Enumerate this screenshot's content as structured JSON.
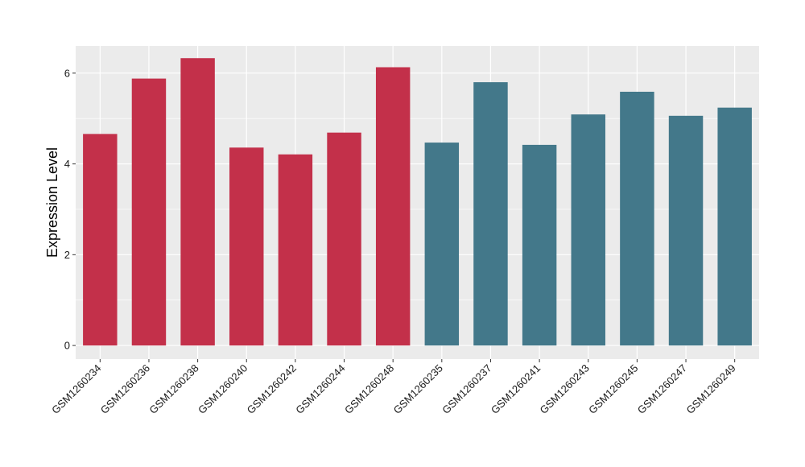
{
  "chart_data": {
    "type": "bar",
    "title": "",
    "xlabel": "",
    "ylabel": "Expression Level",
    "categories": [
      "GSM1260234",
      "GSM1260236",
      "GSM1260238",
      "GSM1260240",
      "GSM1260242",
      "GSM1260244",
      "GSM1260248",
      "GSM1260235",
      "GSM1260237",
      "GSM1260241",
      "GSM1260243",
      "GSM1260245",
      "GSM1260247",
      "GSM1260249"
    ],
    "values": [
      4.66,
      5.88,
      6.33,
      4.36,
      4.21,
      4.69,
      6.13,
      4.47,
      5.8,
      4.42,
      5.09,
      5.59,
      5.06,
      5.24
    ],
    "bar_colors": [
      "#C3304A",
      "#C3304A",
      "#C3304A",
      "#C3304A",
      "#C3304A",
      "#C3304A",
      "#C3304A",
      "#43788A",
      "#43788A",
      "#43788A",
      "#43788A",
      "#43788A",
      "#43788A",
      "#43788A"
    ],
    "ylim": [
      -0.3,
      6.6
    ],
    "yticks": [
      0,
      2,
      4,
      6
    ],
    "grid": true,
    "legend": "none",
    "panel_background": "#EBEBEB",
    "grid_color": "#FFFFFF"
  }
}
